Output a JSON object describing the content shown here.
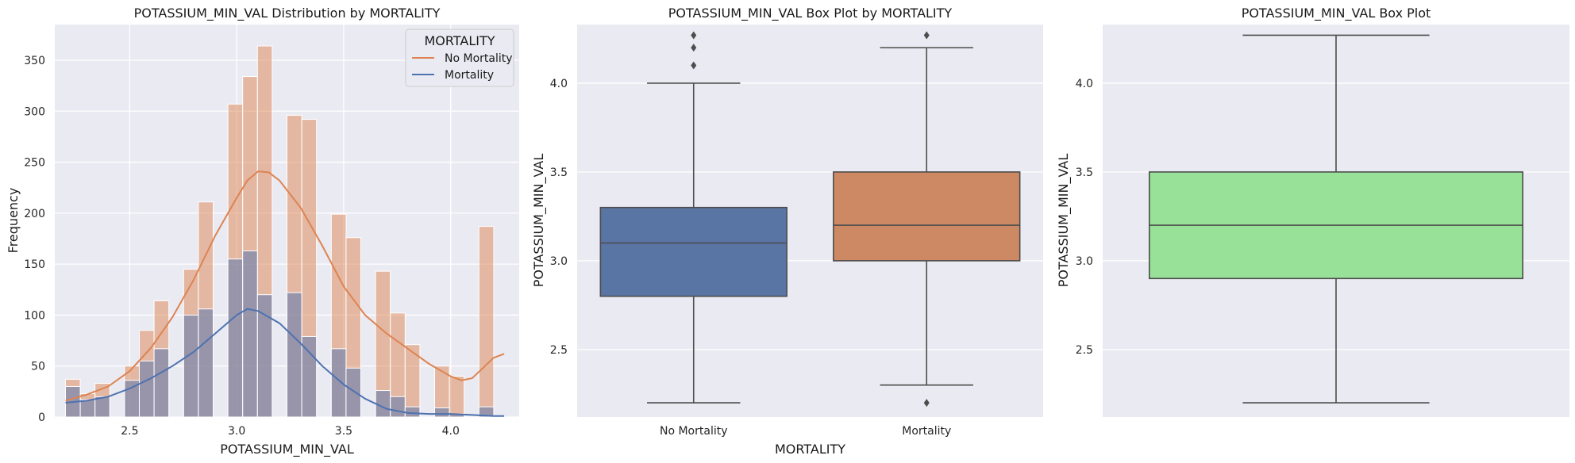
{
  "chart_data": [
    {
      "type": "histogram",
      "title": "POTASSIUM_MIN_VAL Distribution by MORTALITY",
      "xlabel": "POTASSIUM_MIN_VAL",
      "ylabel": "Frequency",
      "xlim": [
        2.15,
        4.32
      ],
      "ylim": [
        0,
        385
      ],
      "xticks": [
        2.5,
        3.0,
        3.5,
        4.0
      ],
      "yticks": [
        0,
        50,
        100,
        150,
        200,
        250,
        300,
        350
      ],
      "tick_labels_x": [
        "2.5",
        "3.0",
        "3.5",
        "4.0"
      ],
      "tick_labels_y": [
        "0",
        "50",
        "100",
        "150",
        "200",
        "250",
        "300",
        "350"
      ],
      "bin_start": 2.2,
      "bin_width": 0.069,
      "legend": {
        "title": "MORTALITY",
        "placement": "top-right",
        "entries": [
          {
            "label": "No Mortality",
            "color": "#dd8452"
          },
          {
            "label": "Mortality",
            "color": "#4c72b0"
          }
        ]
      },
      "series": [
        {
          "name": "No Mortality",
          "color": "#dd8452",
          "counts": [
            37,
            23,
            33,
            0,
            50,
            85,
            114,
            0,
            145,
            211,
            0,
            307,
            334,
            364,
            0,
            296,
            292,
            0,
            199,
            176,
            0,
            143,
            102,
            71,
            0,
            50,
            40,
            0,
            187
          ]
        },
        {
          "name": "Mortality",
          "color": "#4c72b0",
          "counts": [
            30,
            17,
            20,
            0,
            36,
            55,
            67,
            0,
            100,
            106,
            0,
            155,
            163,
            120,
            0,
            122,
            79,
            0,
            67,
            48,
            0,
            26,
            20,
            10,
            0,
            9,
            3,
            0,
            10
          ]
        }
      ],
      "kde": [
        {
          "name": "No Mortality",
          "color": "#dd8452",
          "x": [
            2.2,
            2.3,
            2.4,
            2.5,
            2.6,
            2.7,
            2.8,
            2.9,
            3.0,
            3.05,
            3.1,
            3.15,
            3.2,
            3.3,
            3.4,
            3.5,
            3.6,
            3.7,
            3.8,
            3.9,
            4.0,
            4.05,
            4.1,
            4.15,
            4.2,
            4.25
          ],
          "y": [
            16,
            22,
            30,
            45,
            68,
            98,
            135,
            178,
            215,
            232,
            241,
            240,
            232,
            205,
            168,
            128,
            100,
            82,
            67,
            52,
            40,
            36,
            38,
            48,
            58,
            62
          ]
        },
        {
          "name": "Mortality",
          "color": "#4c72b0",
          "x": [
            2.2,
            2.3,
            2.4,
            2.5,
            2.6,
            2.7,
            2.8,
            2.9,
            3.0,
            3.05,
            3.1,
            3.2,
            3.3,
            3.4,
            3.5,
            3.6,
            3.7,
            3.8,
            3.9,
            4.0,
            4.1,
            4.2,
            4.25
          ],
          "y": [
            14,
            16,
            20,
            28,
            38,
            50,
            64,
            82,
            100,
            106,
            104,
            92,
            72,
            50,
            32,
            18,
            8,
            4,
            3,
            3,
            2,
            1,
            1
          ]
        }
      ]
    },
    {
      "type": "box",
      "title": "POTASSIUM_MIN_VAL Box Plot by MORTALITY",
      "xlabel": "MORTALITY",
      "ylabel": "POTASSIUM_MIN_VAL",
      "ylim": [
        2.12,
        4.33
      ],
      "yticks": [
        2.5,
        3.0,
        3.5,
        4.0
      ],
      "tick_labels_y": [
        "2.5",
        "3.0",
        "3.5",
        "4.0"
      ],
      "categories": [
        "No Mortality",
        "Mortality"
      ],
      "boxes": [
        {
          "name": "No Mortality",
          "color": "#5975a4",
          "whisker_low": 2.2,
          "q1": 2.8,
          "median": 3.1,
          "q3": 3.3,
          "whisker_high": 4.0,
          "outliers": [
            4.1,
            4.2,
            4.27
          ]
        },
        {
          "name": "Mortality",
          "color": "#cc8963",
          "whisker_low": 2.3,
          "q1": 3.0,
          "median": 3.2,
          "q3": 3.5,
          "whisker_high": 4.2,
          "outliers": [
            2.2,
            4.27
          ]
        }
      ]
    },
    {
      "type": "box",
      "title": "POTASSIUM_MIN_VAL Box Plot",
      "xlabel": "",
      "ylabel": "POTASSIUM_MIN_VAL",
      "ylim": [
        2.12,
        4.33
      ],
      "yticks": [
        2.5,
        3.0,
        3.5,
        4.0
      ],
      "tick_labels_y": [
        "2.5",
        "3.0",
        "3.5",
        "4.0"
      ],
      "categories": [
        ""
      ],
      "boxes": [
        {
          "name": "",
          "color": "#98e198",
          "whisker_low": 2.2,
          "q1": 2.9,
          "median": 3.2,
          "q3": 3.5,
          "whisker_high": 4.27,
          "outliers": []
        }
      ]
    }
  ],
  "style": {
    "axes_bg": "#eaeaf2",
    "grid_color": "#ffffff",
    "edge_color": "#4d4d4d"
  }
}
